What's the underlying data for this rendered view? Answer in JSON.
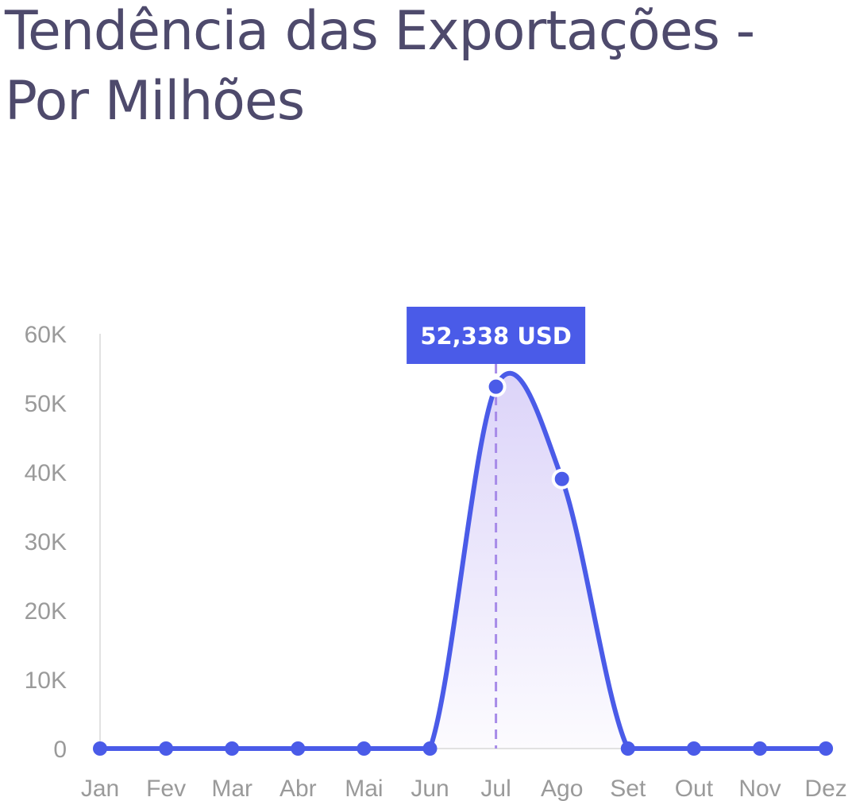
{
  "chart_data": {
    "type": "area",
    "title": "Tendência das Exportações - Por Milhões",
    "xlabel": "",
    "ylabel": "",
    "categories": [
      "Jan",
      "Fev",
      "Mar",
      "Abr",
      "Mai",
      "Jun",
      "Jul",
      "Ago",
      "Set",
      "Out",
      "Nov",
      "Dez"
    ],
    "series": [
      {
        "values": [
          0,
          0,
          0,
          0,
          0,
          0,
          52338,
          39000,
          0,
          0,
          0,
          0
        ],
        "color": "#4a5be8"
      }
    ],
    "ylim": [
      0,
      60000
    ],
    "yticks": [
      0,
      10000,
      20000,
      30000,
      40000,
      50000,
      60000
    ],
    "ytick_labels": [
      "0",
      "10K",
      "20K",
      "30K",
      "40K",
      "50K",
      "60K"
    ],
    "grid": false,
    "tooltip": {
      "category": "Jul",
      "label": "52,338 USD"
    },
    "colors": {
      "line": "#4a5be8",
      "area_fill": "#d8cff8",
      "crosshair": "#a78be8",
      "tooltip_bg": "#4a5be8",
      "axis": "#e2e2e2",
      "tick_text": "#9a9a9a",
      "title": "#4e4a6c"
    }
  }
}
